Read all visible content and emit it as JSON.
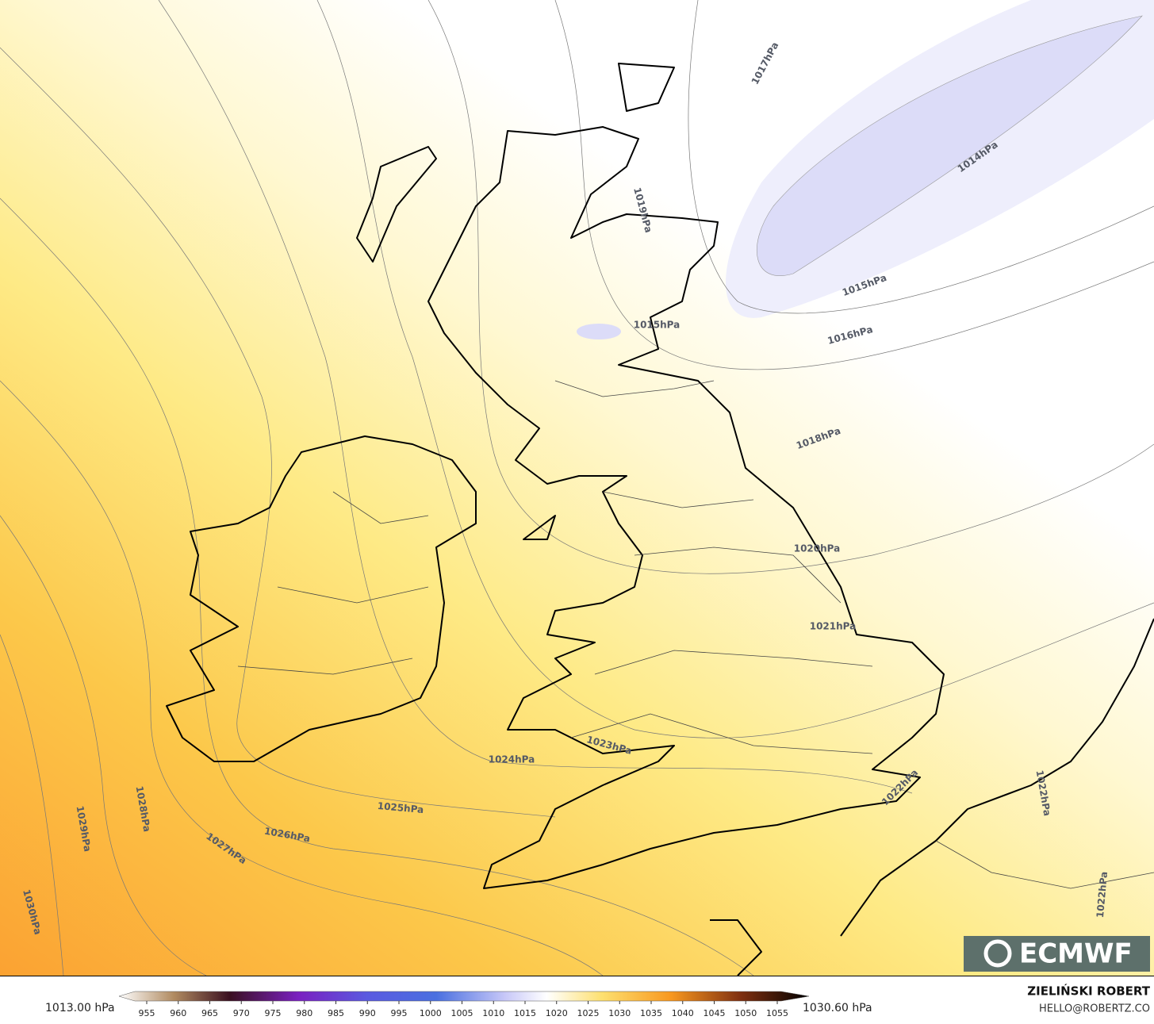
{
  "map": {
    "isobar_labels": [
      "1017hPa",
      "1014hPa",
      "1015hPa",
      "1016hPa",
      "1015hPa",
      "1019hPa",
      "1018hPa",
      "1020hPa",
      "1021hPa",
      "1022hPa",
      "1023hPa",
      "1024hPa",
      "1025hPa",
      "1026hPa",
      "1027hPa",
      "1028hPa",
      "1029hPa",
      "1030hPa",
      "1022hPa",
      "1022hPa"
    ],
    "logo": "ECMWF"
  },
  "colorbar": {
    "min_label": "1013.00 hPa",
    "max_label": "1030.60 hPa",
    "ticks": [
      955,
      960,
      965,
      970,
      975,
      980,
      985,
      990,
      995,
      1000,
      1005,
      1010,
      1015,
      1020,
      1025,
      1030,
      1035,
      1040,
      1045,
      1050,
      1055
    ]
  },
  "credit": {
    "author": "ZIELIŃSKI ROBERT",
    "contact": "HELLO@ROBERTZ.CO"
  }
}
